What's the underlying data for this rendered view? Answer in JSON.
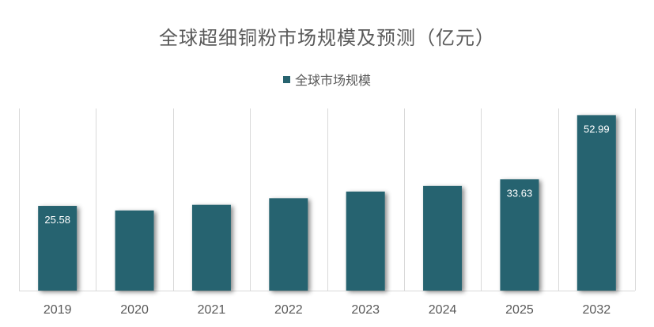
{
  "chart_data": {
    "type": "bar",
    "title": "全球超细铜粉市场规模及预测（亿元）",
    "categories": [
      "2019",
      "2020",
      "2021",
      "2022",
      "2023",
      "2024",
      "2025",
      "2032"
    ],
    "series": [
      {
        "name": "全球市场规模",
        "values": [
          25.58,
          24.2,
          25.9,
          27.9,
          29.9,
          31.6,
          33.63,
          52.99
        ],
        "data_labels": [
          "25.58",
          "",
          "",
          "",
          "",
          "",
          "33.63",
          "52.99"
        ]
      }
    ],
    "ylim": [
      0,
      55
    ],
    "xlabel": "",
    "ylabel": "",
    "legend": "top-center",
    "grid": "vertical-category-separators",
    "color": "#27636f"
  }
}
